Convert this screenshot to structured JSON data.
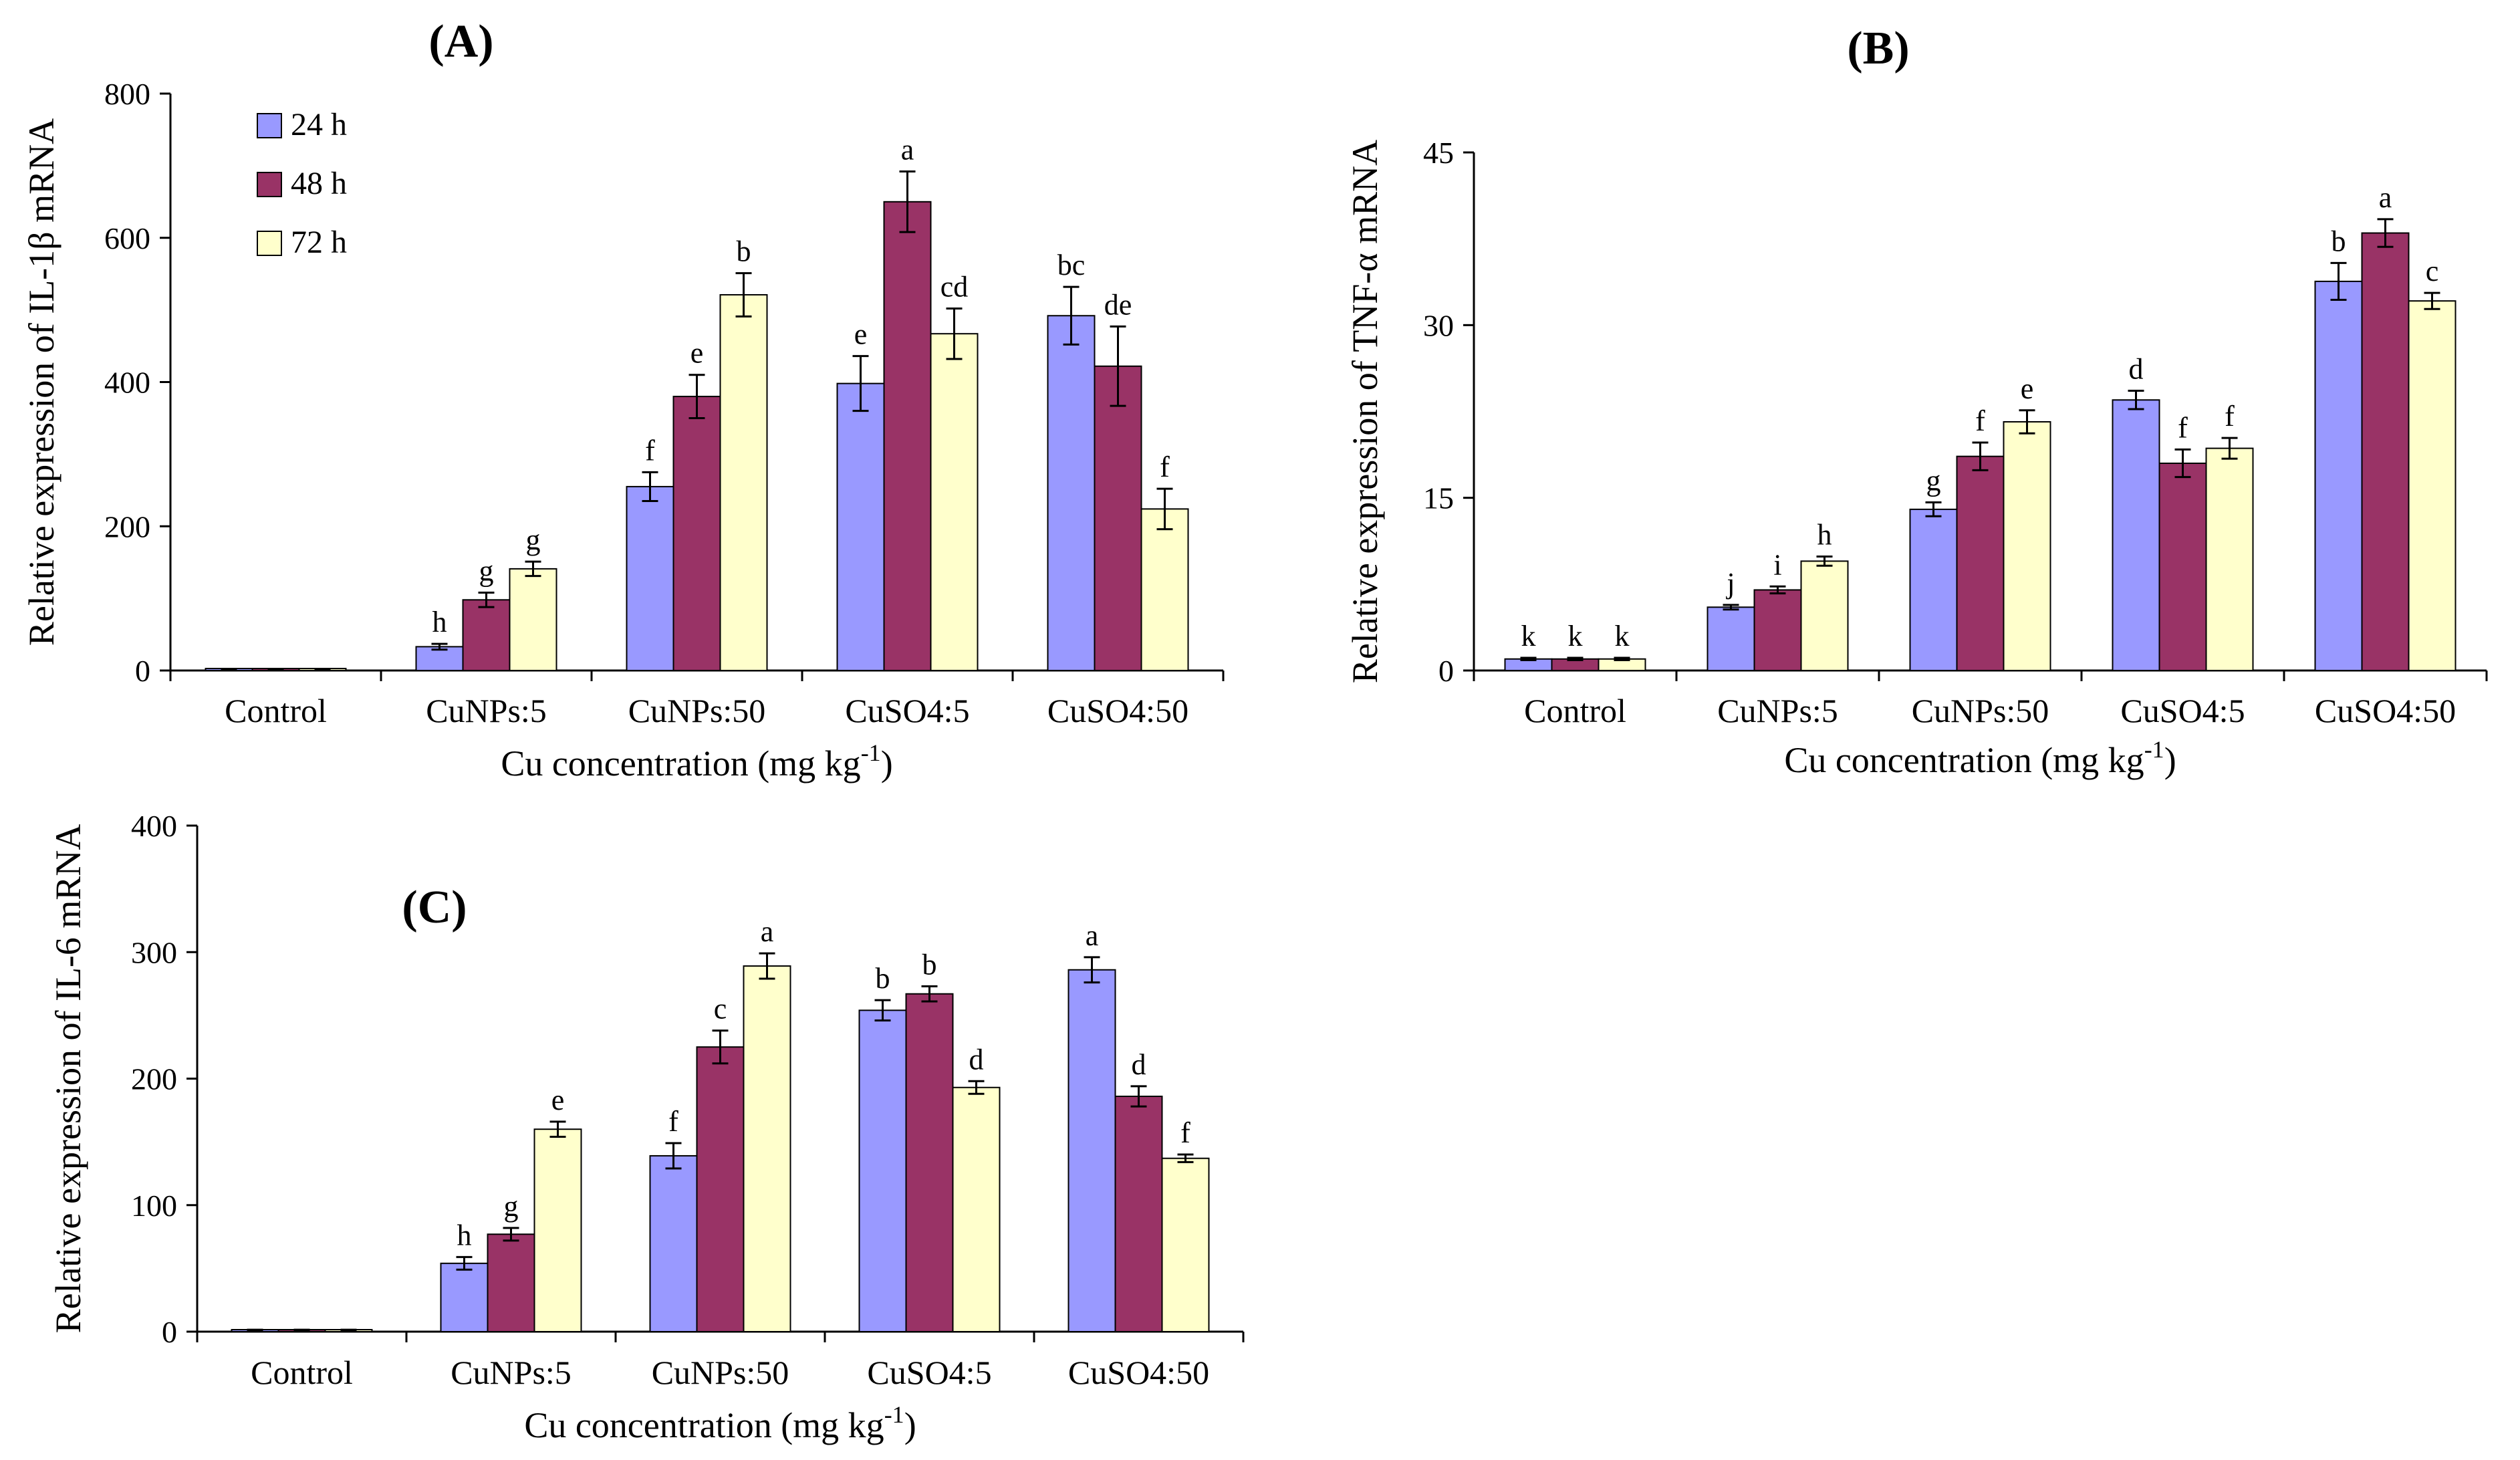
{
  "legend": [
    {
      "name": "24 h",
      "color": "#9999ff"
    },
    {
      "name": "48 h",
      "color": "#993366"
    },
    {
      "name": "72 h",
      "color": "#ffffcc"
    }
  ],
  "chart_data": [
    {
      "type": "bar",
      "panel_label": "(A)",
      "title": "",
      "xlabel": "Cu concentration (mg kg",
      "xlabel_sup": "-1",
      "xlabel_end": ")",
      "ylabel": "Relative expression of IL-1β mRNA",
      "ylim": [
        0,
        800
      ],
      "yticks": [
        0,
        200,
        400,
        600,
        800
      ],
      "categories": [
        "Control",
        "CuNPs:5",
        "CuNPs:50",
        "CuSO4:5",
        "CuSO4:50"
      ],
      "series": [
        {
          "name": "24 h",
          "values": [
            1,
            33,
            255,
            398,
            492
          ],
          "errors": [
            1,
            4,
            20,
            38,
            40
          ],
          "letters": [
            "",
            "h",
            "f",
            "e",
            "bc"
          ]
        },
        {
          "name": "48 h",
          "values": [
            1,
            98,
            380,
            650,
            422
          ],
          "errors": [
            1,
            10,
            30,
            42,
            55
          ],
          "letters": [
            "",
            "g",
            "e",
            "a",
            "de"
          ]
        },
        {
          "name": "72 h",
          "values": [
            1,
            141,
            521,
            467,
            224
          ],
          "errors": [
            1,
            10,
            30,
            35,
            28
          ],
          "letters": [
            "",
            "g",
            "b",
            "cd",
            "f"
          ]
        }
      ]
    },
    {
      "type": "bar",
      "panel_label": "(B)",
      "title": "",
      "xlabel": "Cu concentration (mg kg",
      "xlabel_sup": "-1",
      "xlabel_end": ")",
      "ylabel": "Relative expression of TNF-α mRNA",
      "ylim": [
        0,
        45
      ],
      "yticks": [
        0,
        15,
        30,
        45
      ],
      "categories": [
        "Control",
        "CuNPs:5",
        "CuNPs:50",
        "CuSO4:5",
        "CuSO4:50"
      ],
      "series": [
        {
          "name": "24 h",
          "values": [
            1.0,
            5.5,
            14.0,
            23.5,
            33.8
          ],
          "errors": [
            0.1,
            0.2,
            0.6,
            0.8,
            1.6
          ],
          "letters": [
            "k",
            "j",
            "g",
            "d",
            "b"
          ]
        },
        {
          "name": "48 h",
          "values": [
            1.0,
            7.0,
            18.6,
            18.0,
            38.0
          ],
          "errors": [
            0.1,
            0.3,
            1.2,
            1.2,
            1.2
          ],
          "letters": [
            "k",
            "i",
            "f",
            "f",
            "a"
          ]
        },
        {
          "name": "72 h",
          "values": [
            1.0,
            9.5,
            21.6,
            19.3,
            32.1
          ],
          "errors": [
            0.1,
            0.4,
            1.0,
            0.9,
            0.7
          ],
          "letters": [
            "k",
            "h",
            "e",
            "f",
            "c"
          ]
        }
      ]
    },
    {
      "type": "bar",
      "panel_label": "(C)",
      "title": "",
      "xlabel": "Cu concentration (mg kg",
      "xlabel_sup": "-1",
      "xlabel_end": ")",
      "ylabel": "Relative expression of  IL-6 mRNA",
      "ylim": [
        0,
        400
      ],
      "yticks": [
        0,
        100,
        200,
        300,
        400
      ],
      "categories": [
        "Control",
        "CuNPs:5",
        "CuNPs:50",
        "CuSO4:5",
        "CuSO4:50"
      ],
      "series": [
        {
          "name": "24 h",
          "values": [
            1,
            54,
            139,
            254,
            286
          ],
          "errors": [
            0.5,
            5,
            10,
            8,
            10
          ],
          "letters": [
            "",
            "h",
            "f",
            "b",
            "a"
          ]
        },
        {
          "name": "48 h",
          "values": [
            1,
            77,
            225,
            267,
            186
          ],
          "errors": [
            0.5,
            5,
            13,
            6,
            8
          ],
          "letters": [
            "",
            "g",
            "c",
            "b",
            "d"
          ]
        },
        {
          "name": "72 h",
          "values": [
            1,
            160,
            289,
            193,
            137
          ],
          "errors": [
            0.5,
            6,
            10,
            5,
            3
          ],
          "letters": [
            "",
            "e",
            "a",
            "d",
            "f"
          ]
        }
      ]
    }
  ]
}
